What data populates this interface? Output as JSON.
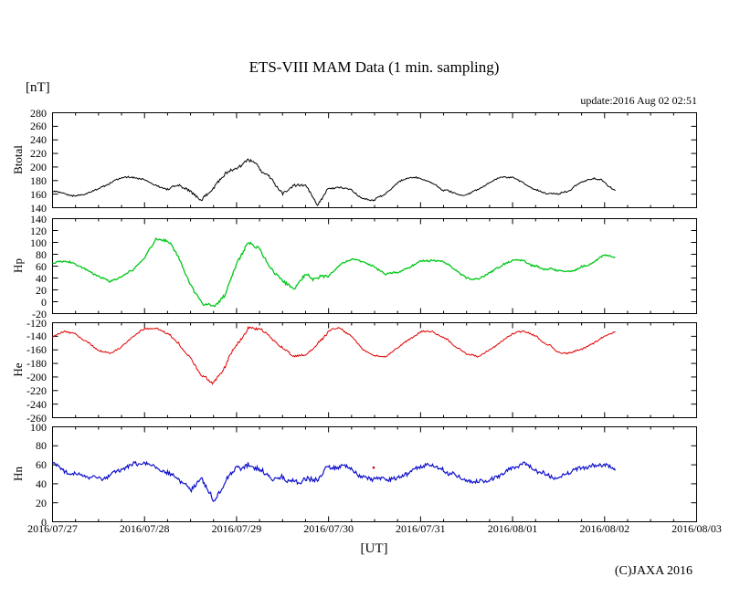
{
  "chart": {
    "title": "ETS-VIII MAM Data (1 min. sampling)",
    "unit_label": "[nT]",
    "update_text": "update:2016 Aug 02 02:51",
    "xlabel": "[UT]",
    "copyright": "(C)JAXA 2016"
  },
  "chart_data": {
    "type": "line",
    "title": "ETS-VIII MAM Data (1 min. sampling)",
    "xlabel": "[UT]",
    "ylabel_unit": "[nT]",
    "x_units": "days since 2016/07/27 00:00 UT",
    "x_tick_labels": [
      "2016/07/27",
      "2016/07/28",
      "2016/07/29",
      "2016/07/30",
      "2016/07/31",
      "2016/08/01",
      "2016/08/02",
      "2016/08/03"
    ],
    "x_range_days": [
      0,
      7
    ],
    "x_minor_tick_days": 0.25,
    "data_end_day": 6.12,
    "grid": false,
    "legend": "none",
    "x_days": [
      0,
      0.125,
      0.25,
      0.375,
      0.5,
      0.625,
      0.75,
      0.875,
      1,
      1.125,
      1.25,
      1.375,
      1.5,
      1.625,
      1.75,
      1.875,
      2,
      2.125,
      2.25,
      2.375,
      2.5,
      2.625,
      2.75,
      2.875,
      3,
      3.125,
      3.25,
      3.375,
      3.5,
      3.625,
      3.75,
      3.875,
      4,
      4.125,
      4.25,
      4.375,
      4.5,
      4.625,
      4.75,
      4.875,
      5,
      5.125,
      5.25,
      5.375,
      5.5,
      5.625,
      5.75,
      5.875,
      6,
      6.125
    ],
    "panels": [
      {
        "name": "Btotal",
        "ylabel": "Btotal",
        "color": "#000000",
        "ylim": [
          140,
          280
        ],
        "ytick_step": 20,
        "noise_hf": 1.1,
        "noise_lf": 1.6,
        "noise_boost": 1.7,
        "stroke": 1.0,
        "values": [
          164,
          160,
          158,
          161,
          167,
          176,
          183,
          185,
          181,
          172,
          167,
          174,
          165,
          152,
          170,
          190,
          196,
          214,
          198,
          183,
          162,
          174,
          173,
          144,
          168,
          171,
          166,
          153,
          151,
          162,
          177,
          185,
          184,
          176,
          166,
          160,
          159,
          167,
          177,
          186,
          184,
          176,
          166,
          160,
          159,
          166,
          177,
          184,
          178,
          163
        ]
      },
      {
        "name": "Hp",
        "ylabel": "Hp",
        "color": "#00c818",
        "ylim": [
          -20,
          140
        ],
        "ytick_step": 20,
        "noise_hf": 1.4,
        "noise_lf": 2.2,
        "noise_boost": 1.7,
        "stroke": 1.3,
        "values": [
          65,
          66,
          64,
          55,
          42,
          32,
          42,
          55,
          75,
          108,
          100,
          75,
          30,
          -5,
          -8,
          10,
          60,
          98,
          90,
          55,
          35,
          20,
          45,
          38,
          45,
          62,
          70,
          65,
          58,
          45,
          50,
          58,
          68,
          72,
          68,
          55,
          40,
          37,
          48,
          60,
          70,
          68,
          60,
          55,
          53,
          52,
          58,
          65,
          78,
          77
        ]
      },
      {
        "name": "He",
        "ylabel": "He",
        "color": "#e00000",
        "ylim": [
          -260,
          -120
        ],
        "ytick_step": 20,
        "noise_hf": 1.1,
        "noise_lf": 1.8,
        "noise_boost": 1.8,
        "stroke": 1.0,
        "values": [
          -140,
          -134,
          -136,
          -148,
          -160,
          -166,
          -155,
          -140,
          -130,
          -128,
          -133,
          -150,
          -172,
          -200,
          -208,
          -185,
          -150,
          -128,
          -126,
          -140,
          -160,
          -172,
          -168,
          -150,
          -132,
          -128,
          -140,
          -158,
          -168,
          -170,
          -158,
          -143,
          -134,
          -132,
          -142,
          -155,
          -167,
          -170,
          -160,
          -148,
          -137,
          -133,
          -140,
          -152,
          -163,
          -165,
          -158,
          -150,
          -140,
          -133
        ]
      },
      {
        "name": "Hn",
        "ylabel": "Hn",
        "color": "#1212cc",
        "ylim": [
          0,
          100
        ],
        "ytick_step": 20,
        "noise_hf": 2.0,
        "noise_lf": 2.4,
        "noise_boost": 1.25,
        "stroke": 1.2,
        "values": [
          60,
          55,
          50,
          47,
          46,
          48,
          54,
          60,
          62,
          58,
          52,
          44,
          32,
          45,
          22,
          44,
          55,
          60,
          54,
          48,
          46,
          44,
          43,
          46,
          56,
          60,
          55,
          48,
          45,
          44,
          46,
          52,
          58,
          60,
          55,
          48,
          45,
          43,
          44,
          50,
          57,
          60,
          55,
          49,
          47,
          50,
          56,
          62,
          61,
          53
        ],
        "stray_point": {
          "x_day": 3.49,
          "value": 57,
          "color": "#e00000"
        }
      }
    ]
  }
}
